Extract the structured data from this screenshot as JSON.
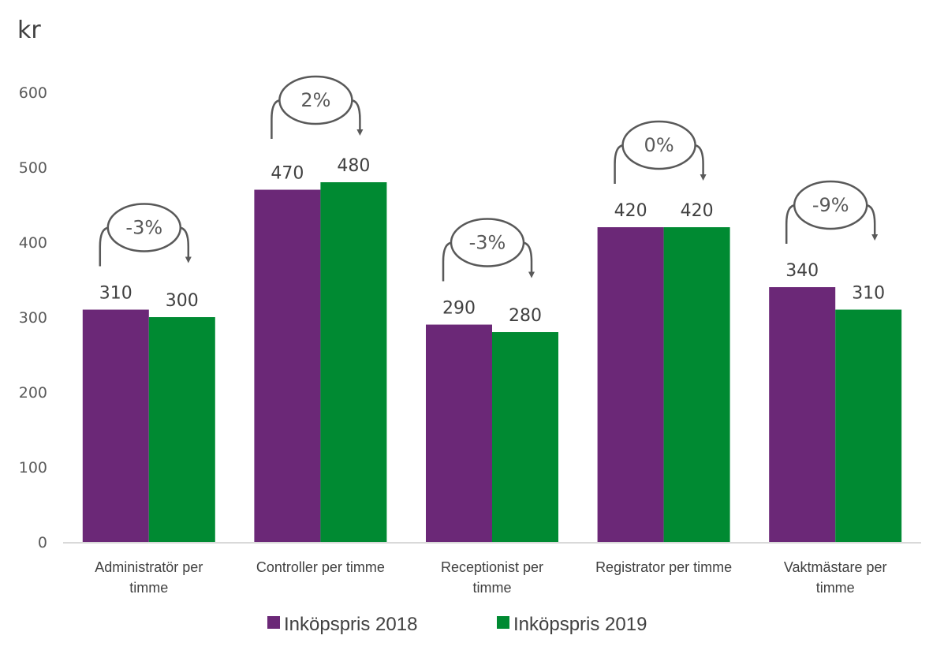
{
  "chart_data": {
    "type": "bar",
    "title": "",
    "ylabel": "kr",
    "xlabel": "",
    "ylim": [
      0,
      600
    ],
    "yticks": [
      "0",
      "100",
      "200",
      "300",
      "400",
      "500",
      "600"
    ],
    "grid": false,
    "legend_position": "bottom",
    "categories": [
      [
        "Administratör per",
        "timme"
      ],
      [
        "Controller per timme"
      ],
      [
        "Receptionist per",
        "timme"
      ],
      [
        "Registrator per timme"
      ],
      [
        "Vaktmästare per",
        "timme"
      ]
    ],
    "series": [
      {
        "name": "Inköpspris 2018",
        "color": "#6B2877",
        "values": [
          310,
          470,
          290,
          420,
          340
        ]
      },
      {
        "name": "Inköpspris 2019",
        "color": "#008A32",
        "values": [
          300,
          480,
          280,
          420,
          310
        ]
      }
    ],
    "annotations": [
      "-3%",
      "2%",
      "-3%",
      "0%",
      "-9%"
    ]
  }
}
